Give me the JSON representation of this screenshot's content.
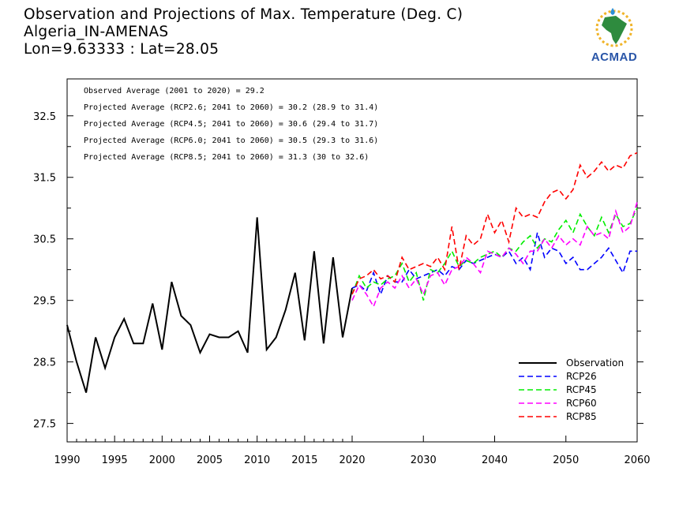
{
  "header": {
    "title": "Observation and Projections of Max. Temperature (Deg. C)",
    "station": "Algeria_IN-AMENAS",
    "coords": "Lon=9.63333 : Lat=28.05"
  },
  "logo": {
    "text": "ACMAD"
  },
  "chart_data": {
    "type": "line",
    "title": "Observation and Projections of Max. Temperature (Deg. C)",
    "xlabel": "",
    "ylabel": "",
    "xlim": [
      1990,
      2060
    ],
    "ylim": [
      27.2,
      33.1
    ],
    "xticks": [
      1990,
      1995,
      2000,
      2005,
      2010,
      2015,
      2020,
      2030,
      2040,
      2050,
      2060
    ],
    "yticks": [
      27.5,
      28.5,
      29.5,
      30.5,
      31.5,
      32.5
    ],
    "ytick_labels": [
      "27.5",
      "28.5",
      "29.5",
      "30.5",
      "31.5",
      "32.5"
    ],
    "grid": false,
    "legend_position": "bottom-right",
    "annotations": [
      "Observed Average (2001 to 2020) = 29.2",
      "Projected Average (RCP2.6; 2041 to 2060) = 30.2 (28.9 to 31.4)",
      "Projected Average (RCP4.5; 2041 to 2060) = 30.6 (29.4 to 31.7)",
      "Projected Average (RCP6.0; 2041 to 2060) = 30.5 (29.3 to 31.6)",
      "Projected Average (RCP8.5; 2041 to 2060) = 31.3 (30 to 32.6)"
    ],
    "series": [
      {
        "name": "Observation",
        "color": "#000000",
        "dash": "solid",
        "x": [
          1990,
          1991,
          1992,
          1993,
          1994,
          1995,
          1996,
          1997,
          1998,
          1999,
          2000,
          2001,
          2002,
          2003,
          2004,
          2005,
          2006,
          2007,
          2008,
          2009,
          2010,
          2011,
          2012,
          2013,
          2014,
          2015,
          2016,
          2017,
          2018,
          2019,
          2020
        ],
        "y": [
          29.1,
          28.5,
          28.0,
          28.9,
          28.4,
          28.9,
          29.2,
          28.8,
          28.8,
          29.45,
          28.7,
          29.8,
          29.25,
          29.1,
          28.65,
          28.95,
          28.9,
          28.9,
          29.0,
          28.65,
          30.85,
          28.7,
          28.9,
          29.35,
          29.95,
          28.85,
          30.3,
          28.8,
          30.2,
          28.9,
          29.7
        ]
      },
      {
        "name": "RCP26",
        "color": "#0000ff",
        "dash": "dashed",
        "x": [
          2020,
          2021,
          2022,
          2023,
          2024,
          2025,
          2026,
          2027,
          2028,
          2029,
          2030,
          2031,
          2032,
          2033,
          2034,
          2035,
          2036,
          2037,
          2038,
          2039,
          2040,
          2041,
          2042,
          2043,
          2044,
          2045,
          2046,
          2047,
          2048,
          2049,
          2050,
          2051,
          2052,
          2053,
          2054,
          2055,
          2056,
          2057,
          2058,
          2059,
          2060
        ],
        "y": [
          29.7,
          29.75,
          29.65,
          29.95,
          29.6,
          29.9,
          29.8,
          29.8,
          30.0,
          29.85,
          29.9,
          29.95,
          30.0,
          29.9,
          30.05,
          30.0,
          30.15,
          30.1,
          30.15,
          30.2,
          30.25,
          30.2,
          30.3,
          30.1,
          30.2,
          30.0,
          30.6,
          30.2,
          30.35,
          30.3,
          30.1,
          30.2,
          30.0,
          30.0,
          30.1,
          30.2,
          30.35,
          30.15,
          29.95,
          30.3,
          30.3
        ]
      },
      {
        "name": "RCP45",
        "color": "#00ee00",
        "dash": "dashed",
        "x": [
          2020,
          2021,
          2022,
          2023,
          2024,
          2025,
          2026,
          2027,
          2028,
          2029,
          2030,
          2031,
          2032,
          2033,
          2034,
          2035,
          2036,
          2037,
          2038,
          2039,
          2040,
          2041,
          2042,
          2043,
          2044,
          2045,
          2046,
          2047,
          2048,
          2049,
          2050,
          2051,
          2052,
          2053,
          2054,
          2055,
          2056,
          2057,
          2058,
          2059,
          2060
        ],
        "y": [
          29.6,
          29.9,
          29.7,
          29.8,
          29.75,
          29.85,
          29.9,
          30.1,
          29.8,
          29.95,
          29.5,
          30.0,
          29.95,
          30.1,
          30.3,
          30.05,
          30.15,
          30.1,
          30.2,
          30.25,
          30.3,
          30.2,
          30.35,
          30.3,
          30.45,
          30.55,
          30.35,
          30.5,
          30.45,
          30.65,
          30.8,
          30.6,
          30.9,
          30.7,
          30.55,
          30.85,
          30.6,
          30.9,
          30.7,
          30.75,
          31.0
        ]
      },
      {
        "name": "RCP60",
        "color": "#ff00ff",
        "dash": "dashed",
        "x": [
          2020,
          2021,
          2022,
          2023,
          2024,
          2025,
          2026,
          2027,
          2028,
          2029,
          2030,
          2031,
          2032,
          2033,
          2034,
          2035,
          2036,
          2037,
          2038,
          2039,
          2040,
          2041,
          2042,
          2043,
          2044,
          2045,
          2046,
          2047,
          2048,
          2049,
          2050,
          2051,
          2052,
          2053,
          2054,
          2055,
          2056,
          2057,
          2058,
          2059,
          2060
        ],
        "y": [
          29.5,
          29.75,
          29.6,
          29.4,
          29.7,
          29.8,
          29.7,
          29.9,
          29.7,
          29.85,
          29.6,
          29.9,
          29.95,
          29.75,
          30.0,
          30.05,
          30.2,
          30.1,
          29.95,
          30.3,
          30.25,
          30.2,
          30.35,
          30.25,
          30.1,
          30.3,
          30.3,
          30.5,
          30.35,
          30.55,
          30.4,
          30.5,
          30.4,
          30.7,
          30.55,
          30.6,
          30.5,
          30.95,
          30.6,
          30.7,
          31.1
        ]
      },
      {
        "name": "RCP85",
        "color": "#ff0000",
        "dash": "dashed",
        "x": [
          2020,
          2021,
          2022,
          2023,
          2024,
          2025,
          2026,
          2027,
          2028,
          2029,
          2030,
          2031,
          2032,
          2033,
          2034,
          2035,
          2036,
          2037,
          2038,
          2039,
          2040,
          2041,
          2042,
          2043,
          2044,
          2045,
          2046,
          2047,
          2048,
          2049,
          2050,
          2051,
          2052,
          2053,
          2054,
          2055,
          2056,
          2057,
          2058,
          2059,
          2060
        ],
        "y": [
          29.6,
          29.85,
          29.9,
          30.0,
          29.85,
          29.9,
          29.8,
          30.2,
          30.0,
          30.05,
          30.1,
          30.05,
          30.2,
          30.0,
          30.7,
          30.0,
          30.55,
          30.4,
          30.5,
          30.9,
          30.6,
          30.8,
          30.45,
          31.0,
          30.85,
          30.9,
          30.85,
          31.1,
          31.25,
          31.3,
          31.15,
          31.3,
          31.7,
          31.5,
          31.6,
          31.75,
          31.6,
          31.7,
          31.65,
          31.85,
          31.9
        ]
      }
    ]
  }
}
